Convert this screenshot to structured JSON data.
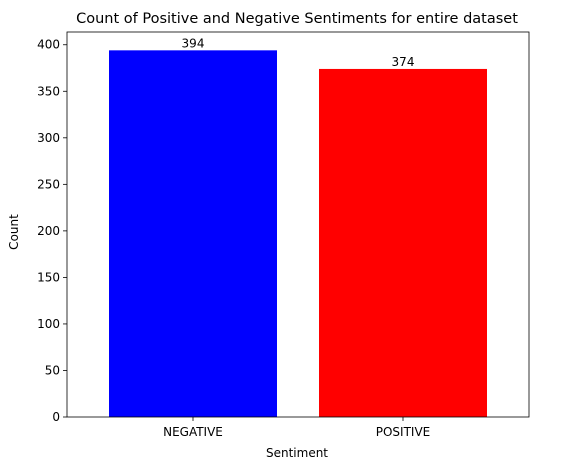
{
  "chart_data": {
    "type": "bar",
    "title": "Count of Positive and Negative Sentiments for entire dataset",
    "xlabel": "Sentiment",
    "ylabel": "Count",
    "categories": [
      "NEGATIVE",
      "POSITIVE"
    ],
    "values": [
      394,
      374
    ],
    "data_labels": [
      "394",
      "374"
    ],
    "colors": [
      "#0000ff",
      "#ff0000"
    ],
    "ylim": [
      0,
      413.7
    ],
    "yticks": [
      0,
      50,
      100,
      150,
      200,
      250,
      300,
      350,
      400
    ],
    "grid": false,
    "legend": "none"
  }
}
